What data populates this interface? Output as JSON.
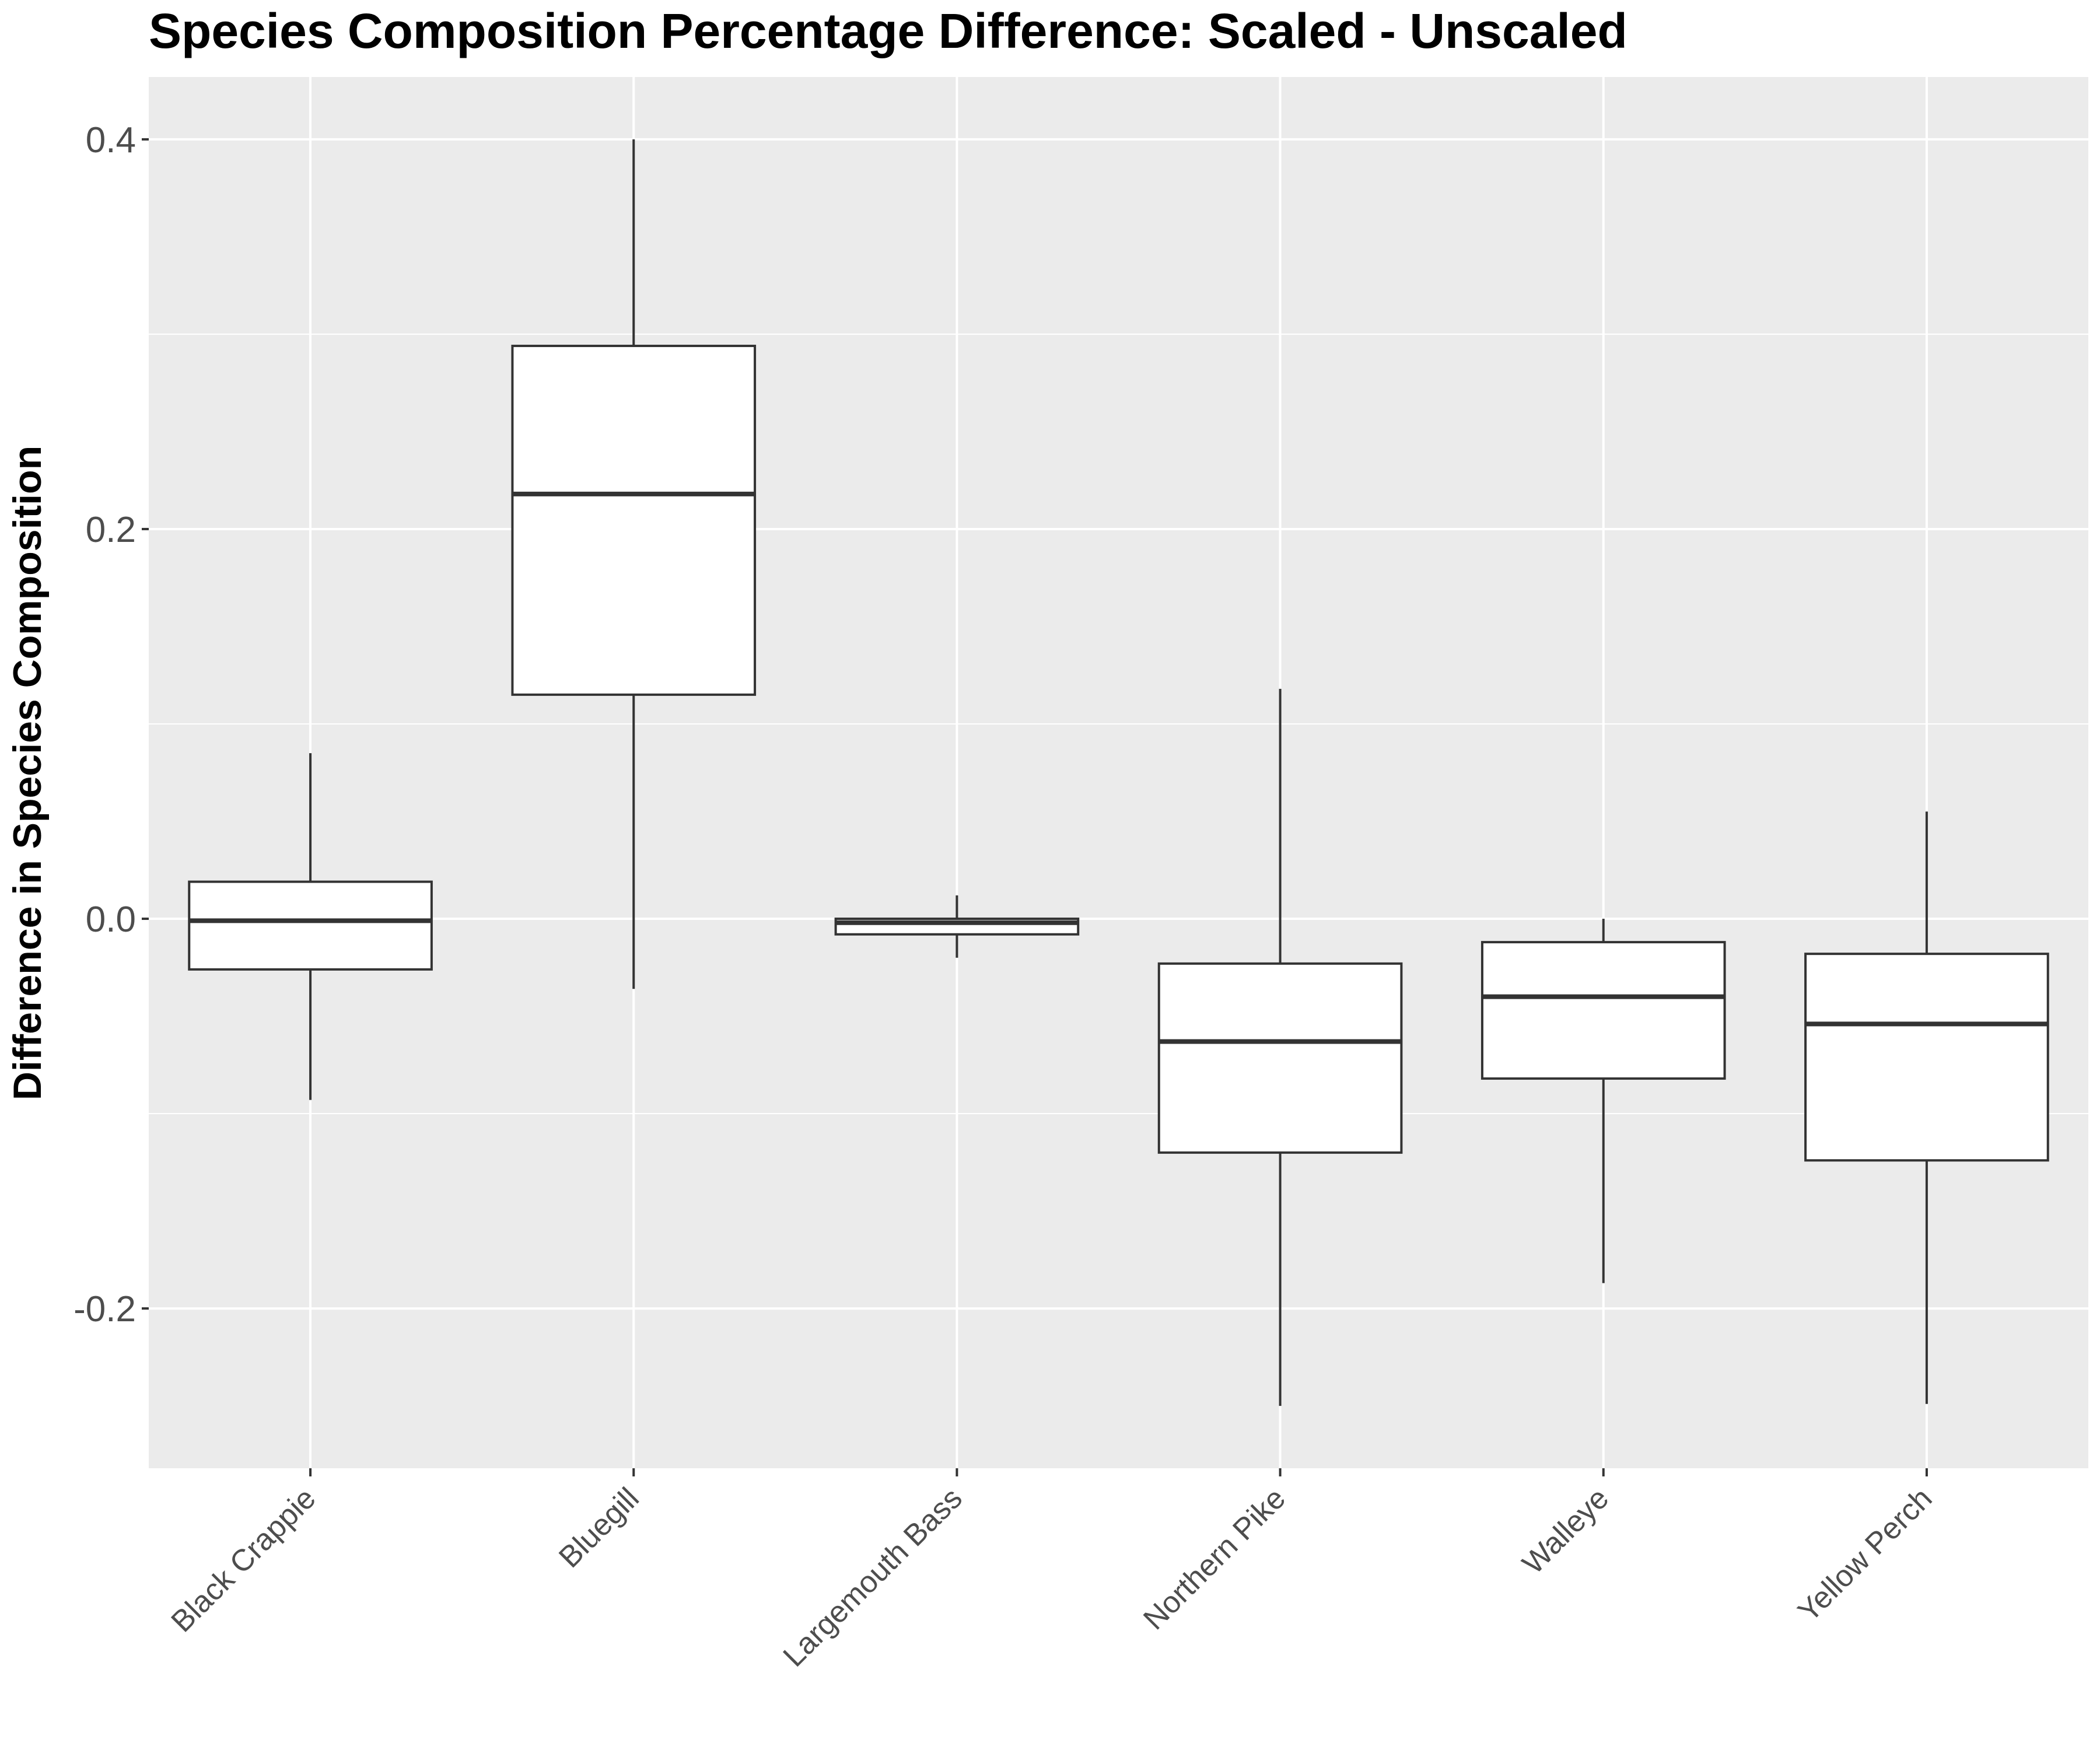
{
  "chart_data": {
    "type": "boxplot",
    "title": "Species Composition Percentage Difference: Scaled - Unscaled",
    "xlabel": "",
    "ylabel": "Difference in Species Composition",
    "ylim": [
      -0.282,
      0.432
    ],
    "yticks": [
      -0.2,
      0.0,
      0.2,
      0.4
    ],
    "ytick_labels": [
      "-0.2",
      "0.0",
      "0.2",
      "0.4"
    ],
    "grid": true,
    "colors": {
      "panel_background": "#ebebeb",
      "grid_line": "#ffffff",
      "box_fill": "#ffffff",
      "box_line": "#333333",
      "tick_text": "#4d4d4d"
    },
    "categories": [
      "Black Crappie",
      "Bluegill",
      "Largemouth Bass",
      "Northern Pike",
      "Walleye",
      "Yellow Perch"
    ],
    "boxes": [
      {
        "category": "Black Crappie",
        "whisker_low": -0.093,
        "q1": -0.026,
        "median": -0.001,
        "q3": 0.019,
        "whisker_high": 0.085
      },
      {
        "category": "Bluegill",
        "whisker_low": -0.036,
        "q1": 0.115,
        "median": 0.218,
        "q3": 0.294,
        "whisker_high": 0.4
      },
      {
        "category": "Largemouth Bass",
        "whisker_low": -0.02,
        "q1": -0.008,
        "median": -0.002,
        "q3": 0.0,
        "whisker_high": 0.012
      },
      {
        "category": "Northern Pike",
        "whisker_low": -0.25,
        "q1": -0.12,
        "median": -0.063,
        "q3": -0.023,
        "whisker_high": 0.118
      },
      {
        "category": "Walleye",
        "whisker_low": -0.187,
        "q1": -0.082,
        "median": -0.04,
        "q3": -0.012,
        "whisker_high": 0.0
      },
      {
        "category": "Yellow Perch",
        "whisker_low": -0.249,
        "q1": -0.124,
        "median": -0.054,
        "q3": -0.018,
        "whisker_high": 0.055
      }
    ]
  }
}
